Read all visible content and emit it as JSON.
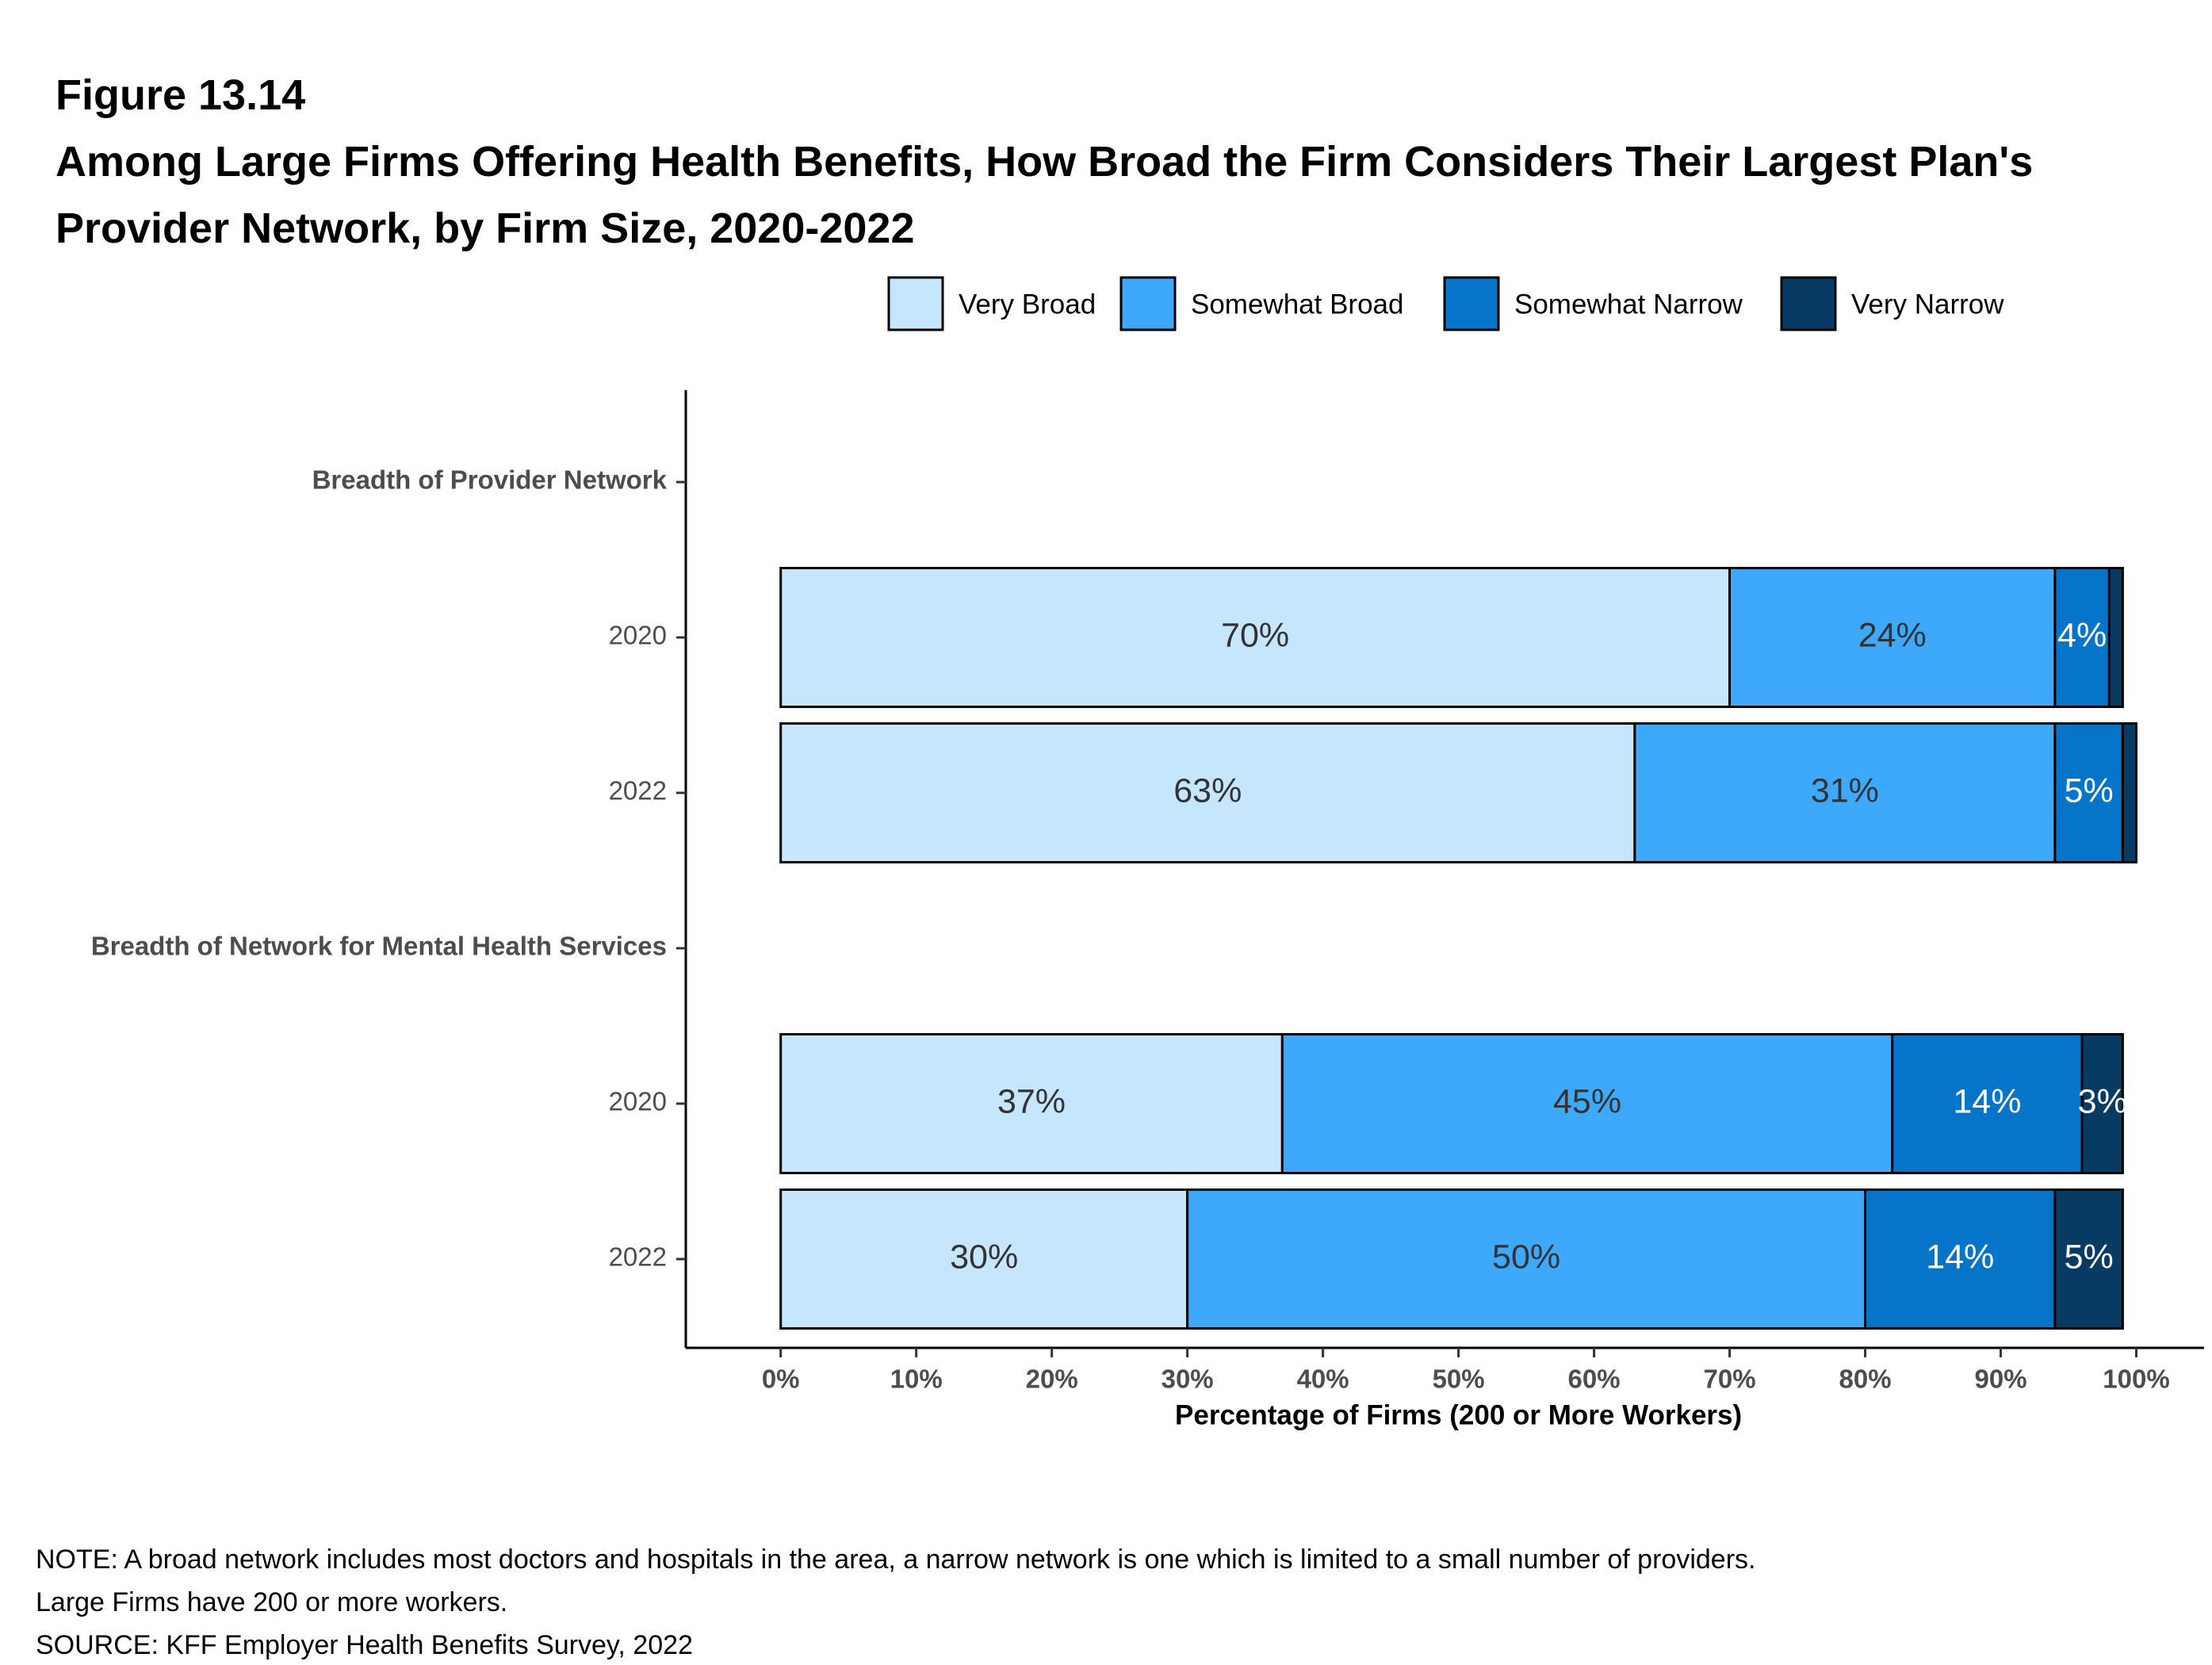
{
  "chart_data": {
    "type": "stacked-bar-horizontal",
    "title_prefix": "Figure 13.14",
    "title": "Among Large Firms Offering Health Benefits, How Broad the Firm Considers Their Largest Plan's Provider Network, by Firm Size, 2020-2022",
    "x_label": "Percentage of Firms (200 or More Workers)",
    "categories": [
      "Breadth of Provider Network",
      "2020",
      "2022",
      "Breadth of Network for Mental Health Services",
      "2020",
      "2022"
    ],
    "series": [
      {
        "name": "Very Broad",
        "color": "#c6e6fd",
        "label_color": "#333333",
        "values": [
          null,
          70,
          63,
          null,
          37,
          30
        ],
        "value_labels": [
          null,
          "70%",
          "63%",
          null,
          "37%",
          "30%"
        ]
      },
      {
        "name": "Somewhat Broad",
        "color": "#3ea8fa",
        "label_color": "#333333",
        "values": [
          null,
          24,
          31,
          null,
          45,
          50
        ],
        "value_labels": [
          null,
          "24%",
          "31%",
          null,
          "45%",
          "50%"
        ]
      },
      {
        "name": "Somewhat Narrow",
        "color": "#0675c9",
        "label_color": "#ffffff",
        "values": [
          null,
          4,
          5,
          null,
          14,
          14
        ],
        "value_labels": [
          null,
          "4%",
          "5%",
          null,
          "14%",
          "14%"
        ]
      },
      {
        "name": "Very Narrow",
        "color": "#073b64",
        "label_color": "#ffffff",
        "values": [
          null,
          1,
          1,
          null,
          3,
          5
        ],
        "value_labels": [
          null,
          null,
          null,
          null,
          "3%",
          "5%"
        ]
      }
    ],
    "xlim": [
      -7,
      105
    ],
    "xticks": [
      {
        "value": 0,
        "label": "0%"
      },
      {
        "value": 10,
        "label": "10%"
      },
      {
        "value": 20,
        "label": "20%"
      },
      {
        "value": 30,
        "label": "30%"
      },
      {
        "value": 40,
        "label": "40%"
      },
      {
        "value": 50,
        "label": "50%"
      },
      {
        "value": 60,
        "label": "60%"
      },
      {
        "value": 70,
        "label": "70%"
      },
      {
        "value": 80,
        "label": "80%"
      },
      {
        "value": 90,
        "label": "90%"
      },
      {
        "value": 100,
        "label": "100%"
      }
    ],
    "legend_position": "top",
    "notes": [
      "NOTE: A broad network includes most doctors and hospitals in the area, a narrow network is one which is limited to a small number of providers.",
      "Large Firms have 200 or more workers.",
      "SOURCE: KFF Employer Health Benefits Survey, 2022"
    ]
  }
}
